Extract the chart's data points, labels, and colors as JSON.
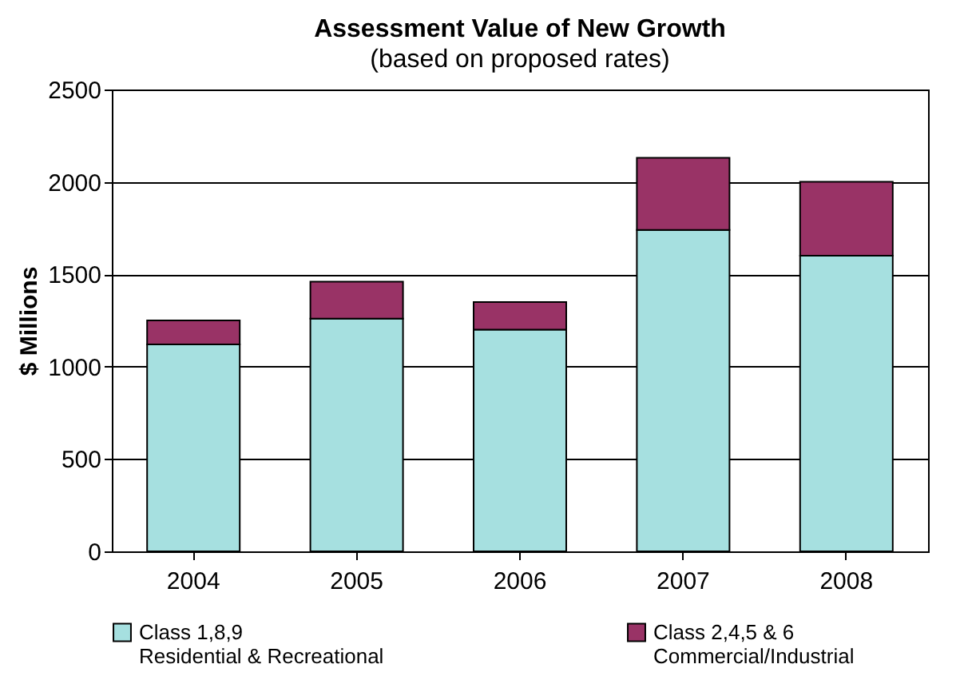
{
  "chart_data": {
    "type": "bar",
    "title": "Assessment Value of New Growth",
    "subtitle": "(based on proposed rates)",
    "ylabel": "$ Millions",
    "categories": [
      "2004",
      "2005",
      "2006",
      "2007",
      "2008"
    ],
    "stacked": true,
    "series": [
      {
        "name": "Class 1,8,9\nResidential & Recreational",
        "color": "#a6e0e0",
        "values": [
          1120,
          1260,
          1200,
          1740,
          1600
        ]
      },
      {
        "name": "Class 2,4,5 & 6\nCommercial/Industrial",
        "color": "#993366",
        "values": [
          130,
          200,
          150,
          390,
          400
        ]
      }
    ],
    "ylim": [
      0,
      2500
    ],
    "yticks": [
      0,
      500,
      1000,
      1500,
      2000,
      2500
    ],
    "grid": "y",
    "legend": "bottom"
  }
}
